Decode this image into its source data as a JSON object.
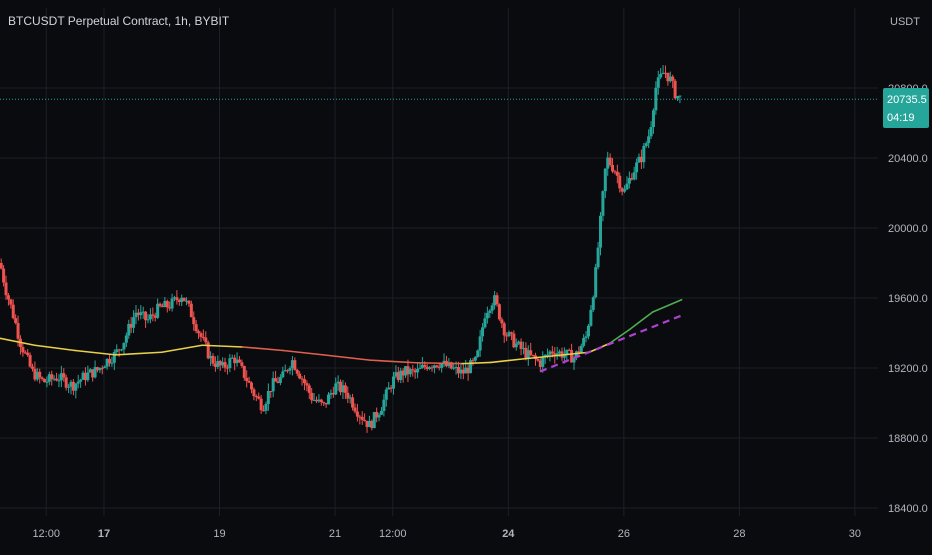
{
  "header": {
    "symbol_title": "BTCUSDT Perpetual Contract, 1h, BYBIT"
  },
  "axis": {
    "currency": "USDT"
  },
  "price_badge": {
    "price": "20735.5",
    "countdown": "04:19"
  },
  "colors": {
    "background": "#0a0b0f",
    "grid": "#1c1f27",
    "up": "#26a69a",
    "down": "#ef5350",
    "ma_yellow": "#e8d04a",
    "ma_red": "#e0604f",
    "ma_green": "#4caf50",
    "trend_dashed": "#b040d0",
    "price_line": "#26a69a",
    "text": "#d1d4dc"
  },
  "chart_data": {
    "type": "candlestick",
    "title": "BTCUSDT Perpetual Contract, 1h, BYBIT",
    "y_unit": "USDT",
    "ylim": [
      18400,
      21200
    ],
    "y_ticks": [
      {
        "value": 18400,
        "label": "18400.0"
      },
      {
        "value": 18800,
        "label": "18800.0"
      },
      {
        "value": 19200,
        "label": "19200.0"
      },
      {
        "value": 19600,
        "label": "19600.0"
      },
      {
        "value": 20000,
        "label": "20000.0"
      },
      {
        "value": 20400,
        "label": "20400.0"
      },
      {
        "value": 20800,
        "label": "20800.0"
      }
    ],
    "x_range_days": [
      15.2,
      30.4
    ],
    "x_ticks": [
      {
        "day": 16.0,
        "label": "12:00",
        "bold": false
      },
      {
        "day": 17.0,
        "label": "17",
        "bold": true
      },
      {
        "day": 19.0,
        "label": "19",
        "bold": false
      },
      {
        "day": 21.0,
        "label": "21",
        "bold": false
      },
      {
        "day": 22.0,
        "label": "12:00",
        "bold": false
      },
      {
        "day": 24.0,
        "label": "24",
        "bold": true
      },
      {
        "day": 26.0,
        "label": "26",
        "bold": false
      },
      {
        "day": 28.0,
        "label": "28",
        "bold": false
      },
      {
        "day": 30.0,
        "label": "30",
        "bold": false
      }
    ],
    "grid": true,
    "last_price": 20735.5,
    "series": [
      {
        "kind": "price_path",
        "points": [
          [
            15.2,
            19800
          ],
          [
            15.3,
            19650
          ],
          [
            15.45,
            19480
          ],
          [
            15.55,
            19350
          ],
          [
            15.75,
            19180
          ],
          [
            15.95,
            19120
          ],
          [
            16.2,
            19150
          ],
          [
            16.45,
            19100
          ],
          [
            16.7,
            19160
          ],
          [
            16.9,
            19190
          ],
          [
            17.0,
            19230
          ],
          [
            17.2,
            19280
          ],
          [
            17.35,
            19360
          ],
          [
            17.55,
            19520
          ],
          [
            17.75,
            19470
          ],
          [
            17.95,
            19540
          ],
          [
            18.15,
            19560
          ],
          [
            18.35,
            19620
          ],
          [
            18.5,
            19520
          ],
          [
            18.65,
            19400
          ],
          [
            18.85,
            19250
          ],
          [
            19.05,
            19200
          ],
          [
            19.25,
            19260
          ],
          [
            19.45,
            19150
          ],
          [
            19.6,
            19050
          ],
          [
            19.75,
            18980
          ],
          [
            19.9,
            19100
          ],
          [
            20.1,
            19150
          ],
          [
            20.25,
            19250
          ],
          [
            20.45,
            19130
          ],
          [
            20.6,
            19030
          ],
          [
            20.8,
            18980
          ],
          [
            21.0,
            19100
          ],
          [
            21.2,
            19060
          ],
          [
            21.4,
            18950
          ],
          [
            21.6,
            18870
          ],
          [
            21.8,
            18980
          ],
          [
            22.0,
            19130
          ],
          [
            22.2,
            19180
          ],
          [
            22.4,
            19170
          ],
          [
            22.6,
            19220
          ],
          [
            22.8,
            19230
          ],
          [
            23.0,
            19200
          ],
          [
            23.2,
            19170
          ],
          [
            23.45,
            19240
          ],
          [
            23.6,
            19520
          ],
          [
            23.75,
            19600
          ],
          [
            23.95,
            19400
          ],
          [
            24.15,
            19330
          ],
          [
            24.35,
            19270
          ],
          [
            24.55,
            19230
          ],
          [
            24.75,
            19300
          ],
          [
            24.95,
            19280
          ],
          [
            25.15,
            19260
          ],
          [
            25.35,
            19380
          ],
          [
            25.5,
            19700
          ],
          [
            25.6,
            20050
          ],
          [
            25.7,
            20400
          ],
          [
            25.85,
            20330
          ],
          [
            26.0,
            20200
          ],
          [
            26.15,
            20320
          ],
          [
            26.3,
            20400
          ],
          [
            26.45,
            20550
          ],
          [
            26.55,
            20800
          ],
          [
            26.7,
            20900
          ],
          [
            26.8,
            20850
          ],
          [
            26.9,
            20760
          ],
          [
            27.0,
            20735.5
          ]
        ]
      },
      {
        "kind": "moving_average",
        "points": [
          [
            15.2,
            19370
          ],
          [
            15.8,
            19330
          ],
          [
            16.5,
            19300
          ],
          [
            17.2,
            19275
          ],
          [
            18.0,
            19290
          ],
          [
            18.7,
            19330
          ],
          [
            19.4,
            19320
          ],
          [
            20.1,
            19300
          ],
          [
            20.8,
            19275
          ],
          [
            21.6,
            19245
          ],
          [
            22.4,
            19230
          ],
          [
            23.2,
            19225
          ],
          [
            23.7,
            19232
          ],
          [
            24.2,
            19250
          ],
          [
            24.8,
            19270
          ],
          [
            25.4,
            19290
          ],
          [
            25.75,
            19340
          ],
          [
            26.1,
            19420
          ],
          [
            26.5,
            19520
          ],
          [
            27.0,
            19590
          ]
        ]
      },
      {
        "kind": "trend_line",
        "points": [
          [
            24.55,
            19180
          ],
          [
            27.0,
            19500
          ]
        ]
      }
    ]
  }
}
